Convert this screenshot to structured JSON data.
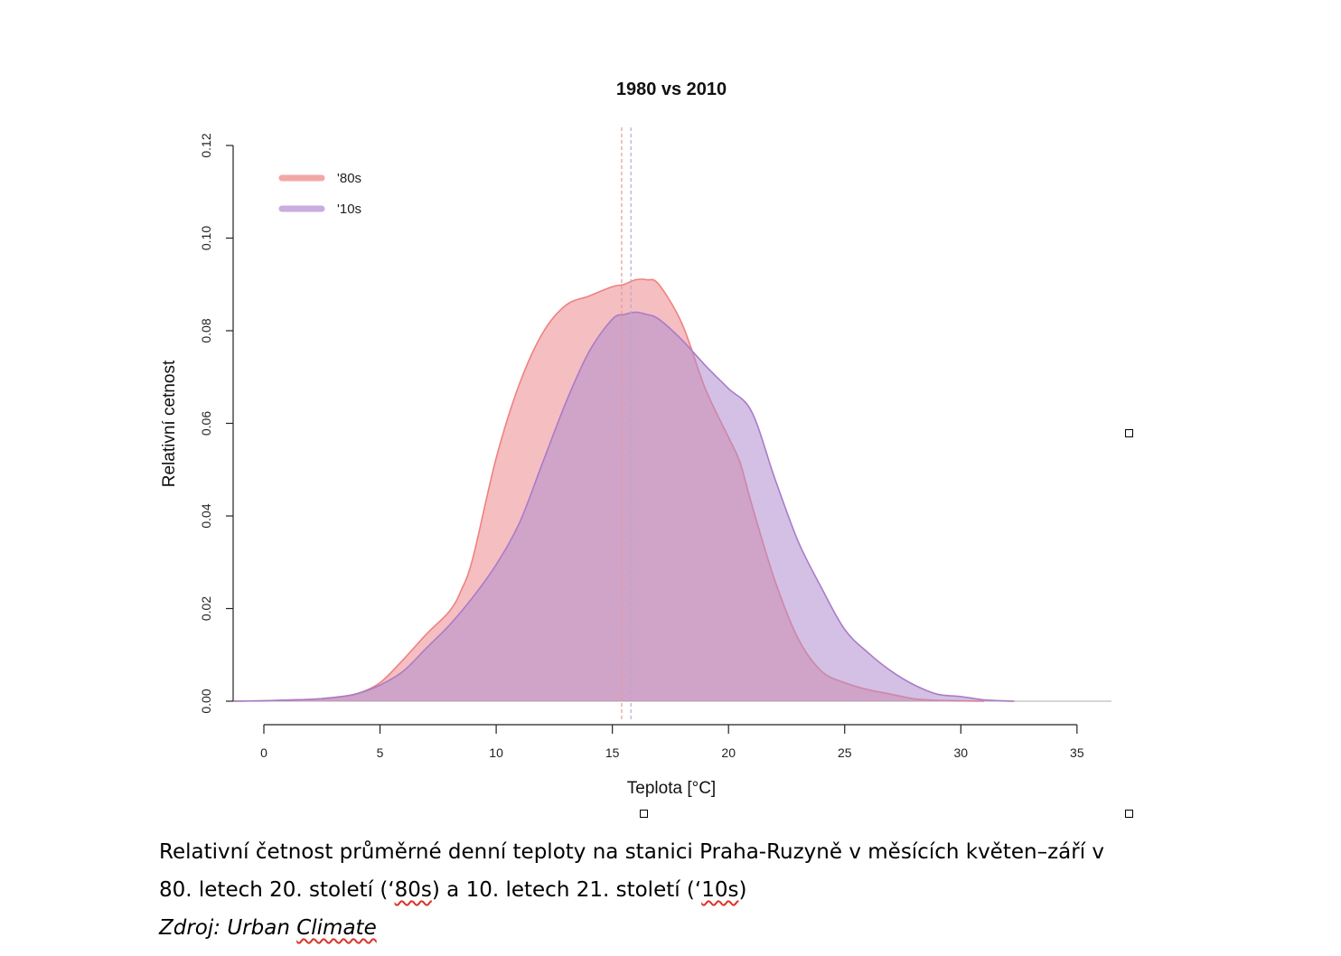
{
  "chart_data": {
    "type": "area",
    "title": "1980 vs 2010",
    "xlabel": "Teplota [°C]",
    "ylabel": "Relativní cetnost",
    "xlim": [
      0,
      35
    ],
    "ylim": [
      0,
      0.12
    ],
    "xticks": [
      0,
      5,
      10,
      15,
      20,
      25,
      30,
      35
    ],
    "yticks": [
      0.0,
      0.02,
      0.04,
      0.06,
      0.08,
      0.1,
      0.12
    ],
    "xtick_labels": [
      "0",
      "5",
      "10",
      "15",
      "20",
      "25",
      "30",
      "35"
    ],
    "ytick_labels": [
      "0.00",
      "0.02",
      "0.04",
      "0.06",
      "0.08",
      "0.10",
      "0.12"
    ],
    "legend_position": "top-left",
    "grid": false,
    "series": [
      {
        "name": "'80s",
        "color": "#f08080",
        "fill": "rgba(235,120,125,0.48)",
        "mean": 15.4,
        "x": [
          -1.3,
          0,
          2,
          3,
          4,
          5,
          6,
          7,
          8,
          8.5,
          9,
          10,
          11,
          12,
          13,
          14,
          15,
          15.5,
          16,
          16.5,
          17,
          18,
          19,
          20,
          20.5,
          21,
          22,
          23,
          24,
          25,
          26,
          27,
          28,
          29,
          30,
          31
        ],
        "y": [
          0.0,
          0.0001,
          0.0004,
          0.0008,
          0.0016,
          0.004,
          0.009,
          0.0145,
          0.0195,
          0.024,
          0.031,
          0.0525,
          0.0685,
          0.0795,
          0.0855,
          0.0875,
          0.0895,
          0.09,
          0.091,
          0.091,
          0.09,
          0.0815,
          0.0675,
          0.057,
          0.0515,
          0.0425,
          0.026,
          0.0135,
          0.0065,
          0.004,
          0.0025,
          0.0015,
          0.0005,
          0.0002,
          0.0001,
          0.0
        ]
      },
      {
        "name": "'10s",
        "color": "#a97cc8",
        "fill": "rgba(176,140,206,0.55)",
        "mean": 15.8,
        "x": [
          -1.3,
          0,
          2,
          3,
          4,
          5,
          6,
          7,
          8,
          9,
          10,
          11,
          12,
          13,
          14,
          15,
          15.5,
          16,
          16.5,
          17,
          18,
          19,
          20,
          21,
          22,
          23,
          24,
          25,
          26,
          27,
          28,
          29,
          30,
          31,
          32.3
        ],
        "y": [
          0.0,
          0.0001,
          0.0004,
          0.0008,
          0.0016,
          0.0035,
          0.0065,
          0.0115,
          0.0165,
          0.0225,
          0.0295,
          0.0385,
          0.0515,
          0.0645,
          0.0755,
          0.0825,
          0.0835,
          0.084,
          0.0835,
          0.0825,
          0.078,
          0.0725,
          0.0675,
          0.0625,
          0.048,
          0.0345,
          0.0245,
          0.0155,
          0.0105,
          0.0065,
          0.0035,
          0.0015,
          0.001,
          0.0003,
          0.0
        ]
      }
    ]
  },
  "caption": {
    "line1": "Relativní četnost průměrné denní teploty na stanici Praha-Ruzyně v měsících květen–září v",
    "line2_part1": "80. letech 20. století (‘",
    "line2_80s": "80s",
    "line2_part2": ") a 10. letech 21. století (‘",
    "line2_10s": "10s",
    "line2_part3": ")",
    "source_prefix": "Zdroj: Urban ",
    "source_climate": "Climate"
  }
}
